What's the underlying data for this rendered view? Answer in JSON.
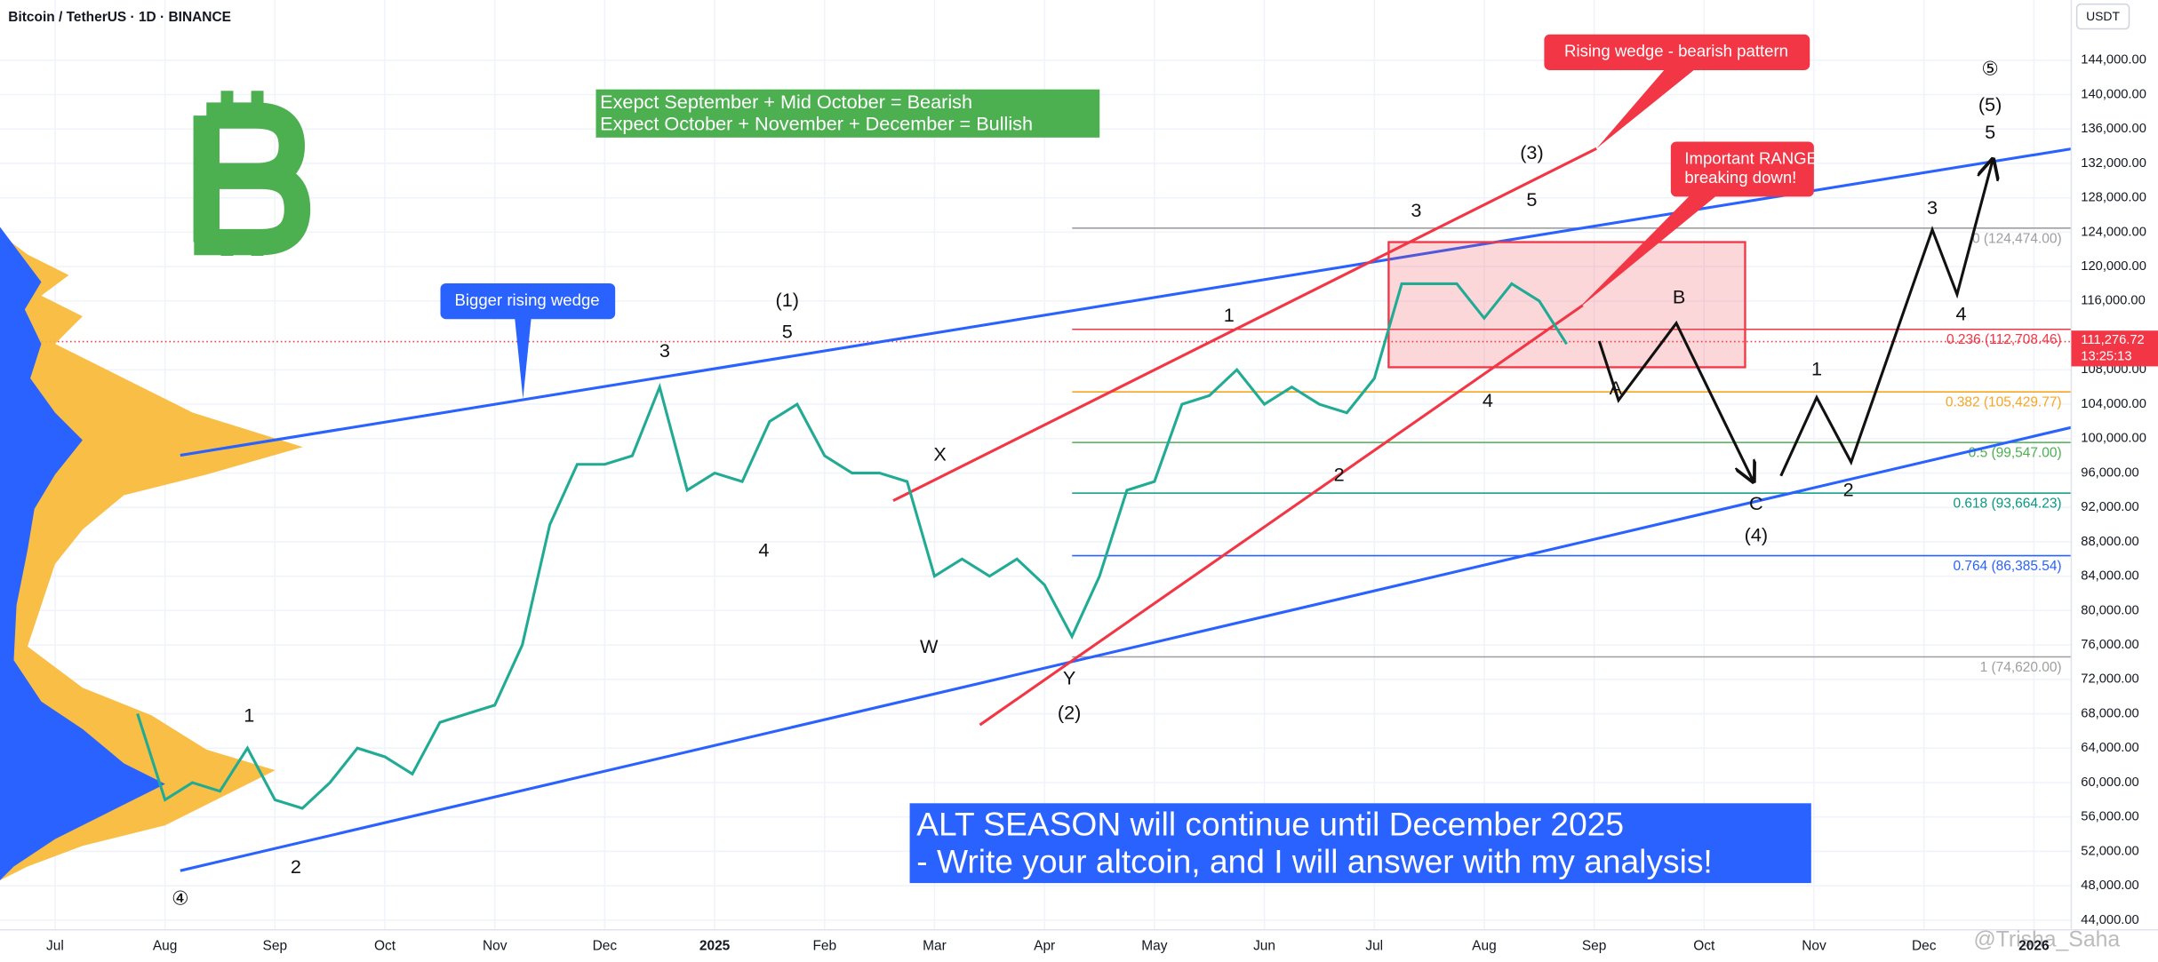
{
  "chart_data": {
    "type": "line",
    "title": "Bitcoin / TetherUS · 1D · BINANCE",
    "currency": "USDT",
    "color": "#22ab94",
    "categories": [
      "Jul",
      null,
      null,
      null,
      "Aug",
      null,
      null,
      null,
      "Sep",
      null,
      null,
      null,
      "Oct",
      null,
      null,
      null,
      "Nov",
      null,
      null,
      null,
      "Dec",
      null,
      null,
      null,
      "2025",
      null,
      null,
      null,
      "Feb",
      null,
      null,
      null,
      "Mar",
      null,
      null,
      null,
      "Apr",
      null,
      null,
      null,
      "May",
      null,
      null,
      null,
      "Jun",
      null,
      null,
      null,
      "Jul",
      null,
      null,
      null,
      "Aug",
      null,
      null,
      null,
      "Sep",
      null,
      null,
      null,
      "Oct",
      null,
      null,
      null,
      "Nov",
      null,
      null,
      null,
      "Dec",
      null,
      null,
      null,
      "2026"
    ],
    "values": [
      null,
      null,
      null,
      68000,
      58000,
      60000,
      59000,
      64000,
      58000,
      57000,
      60000,
      64000,
      63000,
      61000,
      67000,
      68000,
      69000,
      76000,
      90000,
      97000,
      97000,
      98000,
      106000,
      94000,
      96000,
      95000,
      102000,
      104000,
      98000,
      96000,
      96000,
      95000,
      84000,
      86000,
      84000,
      86000,
      83000,
      77000,
      84000,
      94000,
      95000,
      104000,
      105000,
      108000,
      104000,
      106000,
      104000,
      103000,
      107000,
      118000,
      118000,
      118000,
      114000,
      118000,
      116000,
      111000,
      null,
      null,
      null,
      null,
      null,
      null,
      null,
      null,
      null,
      null,
      null,
      null,
      null,
      null,
      null,
      null,
      null
    ],
    "ylim": [
      40000,
      151000
    ],
    "yticks": [
      {
        "value": 44000,
        "label": "44,000.00"
      },
      {
        "value": 48000,
        "label": "48,000.00"
      },
      {
        "value": 52000,
        "label": "52,000.00"
      },
      {
        "value": 56000,
        "label": "56,000.00"
      },
      {
        "value": 60000,
        "label": "60,000.00"
      },
      {
        "value": 64000,
        "label": "64,000.00"
      },
      {
        "value": 68000,
        "label": "68,000.00"
      },
      {
        "value": 72000,
        "label": "72,000.00"
      },
      {
        "value": 76000,
        "label": "76,000.00"
      },
      {
        "value": 80000,
        "label": "80,000.00"
      },
      {
        "value": 84000,
        "label": "84,000.00"
      },
      {
        "value": 88000,
        "label": "88,000.00"
      },
      {
        "value": 92000,
        "label": "92,000.00"
      },
      {
        "value": 96000,
        "label": "96,000.00"
      },
      {
        "value": 100000,
        "label": "100,000.00"
      },
      {
        "value": 104000,
        "label": "104,000.00"
      },
      {
        "value": 108000,
        "label": "108,000.00"
      },
      {
        "value": 116000,
        "label": "116,000.00"
      },
      {
        "value": 120000,
        "label": "120,000.00"
      },
      {
        "value": 124000,
        "label": "124,000.00"
      },
      {
        "value": 128000,
        "label": "128,000.00"
      },
      {
        "value": 132000,
        "label": "132,000.00"
      },
      {
        "value": 136000,
        "label": "136,000.00"
      },
      {
        "value": 140000,
        "label": "140,000.00"
      },
      {
        "value": 144000,
        "label": "144,000.00"
      }
    ],
    "current_price": {
      "value": 111276.72,
      "label": "111,276.72",
      "countdown": "13:25:13"
    },
    "fib_levels": [
      {
        "value": 124474,
        "label": "0 (124,474.00)",
        "color": "#9e9e9e"
      },
      {
        "value": 112708.46,
        "label": "0.236 (112,708.46)",
        "color": "#f23645"
      },
      {
        "value": 105429.77,
        "label": "0.382 (105,429.77)",
        "color": "#f5a623"
      },
      {
        "value": 99547,
        "label": "0.5 (99,547.00)",
        "color": "#4caf50"
      },
      {
        "value": 93664.23,
        "label": "0.618 (93,664.23)",
        "color": "#089981"
      },
      {
        "value": 86385.54,
        "label": "0.764 (86,385.54)",
        "color": "#2962ff"
      },
      {
        "value": 74620,
        "label": "1 (74,620.00)",
        "color": "#9e9e9e"
      }
    ],
    "annotations": [
      "1",
      "2",
      "3",
      "(1)",
      "5",
      "4",
      "X",
      "W",
      "Y",
      "(2)",
      "1",
      "2",
      "3",
      "5",
      "4",
      "(3)",
      "A",
      "B",
      "C",
      "(4)",
      "1",
      "2",
      "3",
      "4",
      "5",
      "(5)",
      "⑤",
      "④"
    ],
    "callouts": {
      "rising_wedge": "Rising wedge - bearish pattern",
      "important_range": [
        "Important RANGE =",
        "breaking down!"
      ],
      "bigger_wedge": "Bigger rising wedge",
      "seasonality": [
        "Exepct September + Mid October = Bearish",
        "Expect October + November + December = Bullish"
      ],
      "alt_season": [
        "ALT SEASON will continue until December 2025",
        "- Write your altcoin, and I will answer with my analysis!"
      ]
    },
    "watermark": "@Trisha_Saha"
  }
}
